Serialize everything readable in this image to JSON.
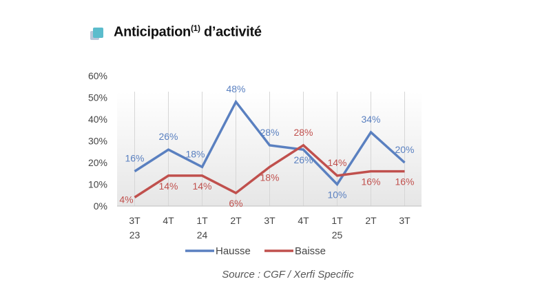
{
  "title": {
    "main": "Anticipation",
    "sup": "(1)",
    "rest": " d’activité"
  },
  "source": "Source : CGF / Xerfi Specific",
  "colors": {
    "Hausse": "#5a80c0",
    "Baisse": "#c0504d",
    "icon": "#5bbccc"
  },
  "chart_data": {
    "type": "line",
    "categories": [
      [
        "3T",
        "23"
      ],
      [
        "4T",
        ""
      ],
      [
        "1T",
        "24"
      ],
      [
        "2T",
        ""
      ],
      [
        "3T",
        ""
      ],
      [
        "4T",
        ""
      ],
      [
        "1T",
        "25"
      ],
      [
        "2T",
        ""
      ],
      [
        "3T",
        ""
      ]
    ],
    "series": [
      {
        "name": "Hausse",
        "values": [
          16,
          26,
          18,
          48,
          28,
          26,
          10,
          34,
          20
        ]
      },
      {
        "name": "Baisse",
        "values": [
          4,
          14,
          14,
          6,
          18,
          28,
          14,
          16,
          16
        ]
      }
    ],
    "yticks": [
      "0%",
      "10%",
      "20%",
      "30%",
      "40%",
      "50%",
      "60%"
    ],
    "ylim": [
      0,
      60
    ],
    "grid": "vertical",
    "legend": "bottom",
    "data_labels": true
  }
}
